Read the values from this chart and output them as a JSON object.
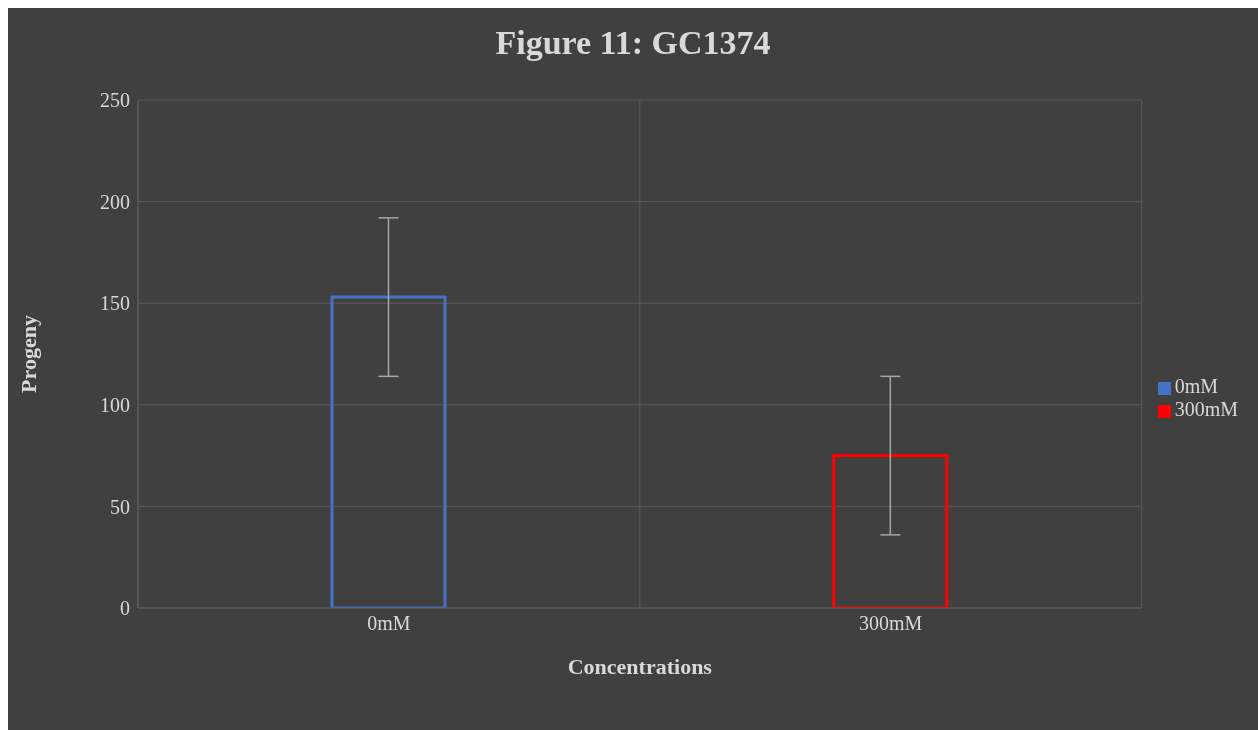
{
  "chart_data": {
    "type": "bar",
    "title": "Figure 11: GC1374",
    "xlabel": "Concentrations",
    "ylabel": "Progeny",
    "categories": [
      "0mM",
      "300mM"
    ],
    "series": [
      {
        "name": "0mM",
        "color": "#4472c4",
        "values": [
          153,
          null
        ],
        "errors": [
          39,
          null
        ]
      },
      {
        "name": "300mM",
        "color": "#ff0000",
        "values": [
          null,
          75
        ],
        "errors": [
          null,
          39
        ]
      }
    ],
    "ylim": [
      0,
      250
    ],
    "yticks": [
      0,
      50,
      100,
      150,
      200,
      250
    ],
    "grid": true,
    "legend": "right"
  }
}
